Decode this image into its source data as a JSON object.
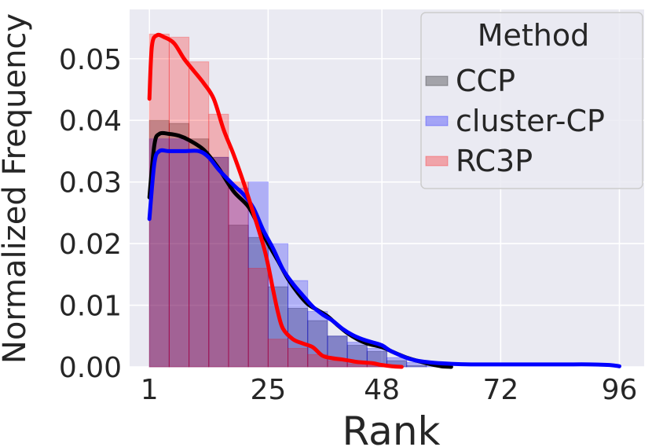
{
  "chart_data": {
    "type": "histogram-kde",
    "xlabel": "Rank",
    "ylabel": "Normalized Frequency",
    "xlim": [
      -3,
      101
    ],
    "ylim": [
      0,
      0.058
    ],
    "grid": true,
    "x_ticks": [
      1,
      25,
      48,
      72,
      96
    ],
    "x_tick_labels": [
      "1",
      "25",
      "48",
      "72",
      "96"
    ],
    "y_ticks": [
      0.0,
      0.01,
      0.02,
      0.03,
      0.04,
      0.05
    ],
    "y_tick_labels": [
      "0.00",
      "0.01",
      "0.02",
      "0.03",
      "0.04",
      "0.05"
    ],
    "legend": {
      "title": "Method",
      "placement": "top-right",
      "entries": [
        "CCP",
        "cluster-CP",
        "RC3P"
      ]
    },
    "bin_edges": [
      1,
      5,
      9,
      13,
      17,
      21,
      25,
      29,
      33,
      37,
      41,
      45,
      49,
      53,
      57,
      61
    ],
    "series": [
      {
        "name": "CCP",
        "color": "#000000",
        "hist": [
          0.04,
          0.0395,
          0.037,
          0.034,
          0.023,
          0.021,
          0.013,
          0.0095,
          0.0075,
          0.005,
          0.0035,
          0.0025,
          0.001,
          0.0002,
          0.0
        ],
        "kde_x": [
          1,
          2,
          3,
          5,
          7,
          9,
          12,
          15,
          18,
          21,
          23,
          25,
          27,
          29,
          31,
          33,
          35,
          37,
          39,
          41,
          43,
          45,
          48,
          50,
          53,
          56,
          58,
          60,
          62
        ],
        "kde_y": [
          0.0275,
          0.036,
          0.0378,
          0.0378,
          0.0375,
          0.0368,
          0.0352,
          0.0322,
          0.0285,
          0.026,
          0.023,
          0.02,
          0.0172,
          0.0143,
          0.012,
          0.0102,
          0.0092,
          0.0082,
          0.0068,
          0.0055,
          0.0045,
          0.0038,
          0.0032,
          0.0025,
          0.0015,
          0.0008,
          0.0004,
          0.0001,
          0.0
        ]
      },
      {
        "name": "cluster-CP",
        "color": "#0000ff",
        "hist": [
          0.037,
          0.037,
          0.035,
          0.034,
          0.029,
          0.03,
          0.02,
          0.014,
          0.009,
          0.005,
          0.004,
          0.003,
          0.0015,
          0.0007,
          0.0003
        ],
        "kde_x": [
          1,
          2,
          3,
          5,
          8,
          11,
          13,
          15,
          18,
          20,
          22,
          24,
          26,
          28,
          30,
          32,
          34,
          36,
          38,
          40,
          42,
          44,
          46,
          48,
          50,
          54,
          58,
          62,
          66,
          70,
          75,
          80,
          85,
          90,
          94,
          96
        ],
        "kde_y": [
          0.024,
          0.033,
          0.035,
          0.035,
          0.035,
          0.035,
          0.034,
          0.032,
          0.0295,
          0.028,
          0.0258,
          0.0222,
          0.0192,
          0.0158,
          0.0135,
          0.0116,
          0.0098,
          0.0085,
          0.0075,
          0.0062,
          0.0052,
          0.0045,
          0.004,
          0.0035,
          0.0025,
          0.0012,
          0.0007,
          0.0005,
          0.0004,
          0.0004,
          0.0004,
          0.0004,
          0.0004,
          0.0004,
          0.0003,
          0.0001
        ]
      },
      {
        "name": "RC3P",
        "color": "#ff0000",
        "hist": [
          0.054,
          0.0535,
          0.0495,
          0.041,
          0.03,
          0.016,
          0.0045,
          0.003,
          0.002,
          0.001,
          0.0005,
          0.0002,
          0.0,
          0.0,
          0.0
        ],
        "kde_x": [
          1,
          1.5,
          2.5,
          4,
          6,
          8,
          10,
          12,
          14,
          16,
          18,
          20,
          22,
          24,
          25,
          26,
          27,
          28,
          30,
          32,
          34,
          36,
          38,
          40,
          43,
          46,
          48,
          50,
          52
        ],
        "kde_y": [
          0.0435,
          0.052,
          0.0538,
          0.0535,
          0.0525,
          0.05,
          0.048,
          0.046,
          0.0435,
          0.0385,
          0.0345,
          0.03,
          0.025,
          0.0198,
          0.0165,
          0.0125,
          0.0088,
          0.0062,
          0.0045,
          0.0038,
          0.0032,
          0.0018,
          0.0014,
          0.0012,
          0.0008,
          0.0006,
          0.0003,
          0.0001,
          0.0
        ]
      }
    ]
  }
}
